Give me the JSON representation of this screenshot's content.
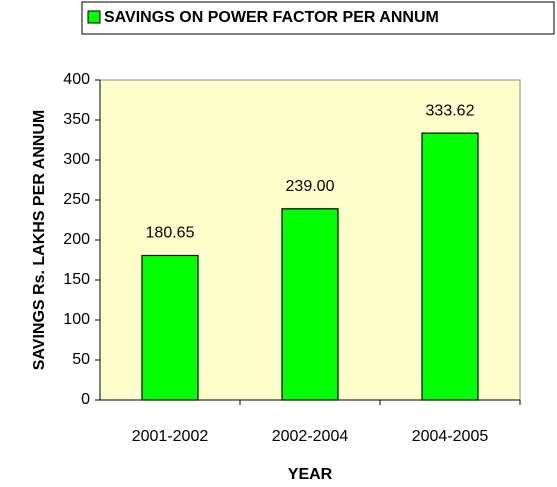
{
  "chart_data": {
    "type": "bar",
    "categories": [
      "2001-2002",
      "2002-2004",
      "2004-2005"
    ],
    "series": [
      {
        "name": "SAVINGS ON POWER FACTOR PER ANNUM",
        "color": "#00ff00",
        "values": [
          180.65,
          239.0,
          333.62
        ],
        "value_labels": [
          "180.65",
          "239.00",
          "333.62"
        ]
      }
    ],
    "x_label": "YEAR",
    "y_label": "SAVINGS Rs. LAKHS PER ANNUM",
    "ylim": [
      0,
      400
    ],
    "yticks": [
      0,
      50,
      100,
      150,
      200,
      250,
      300,
      350,
      400
    ],
    "plot_background": "#ffffcc",
    "legend": "top"
  }
}
